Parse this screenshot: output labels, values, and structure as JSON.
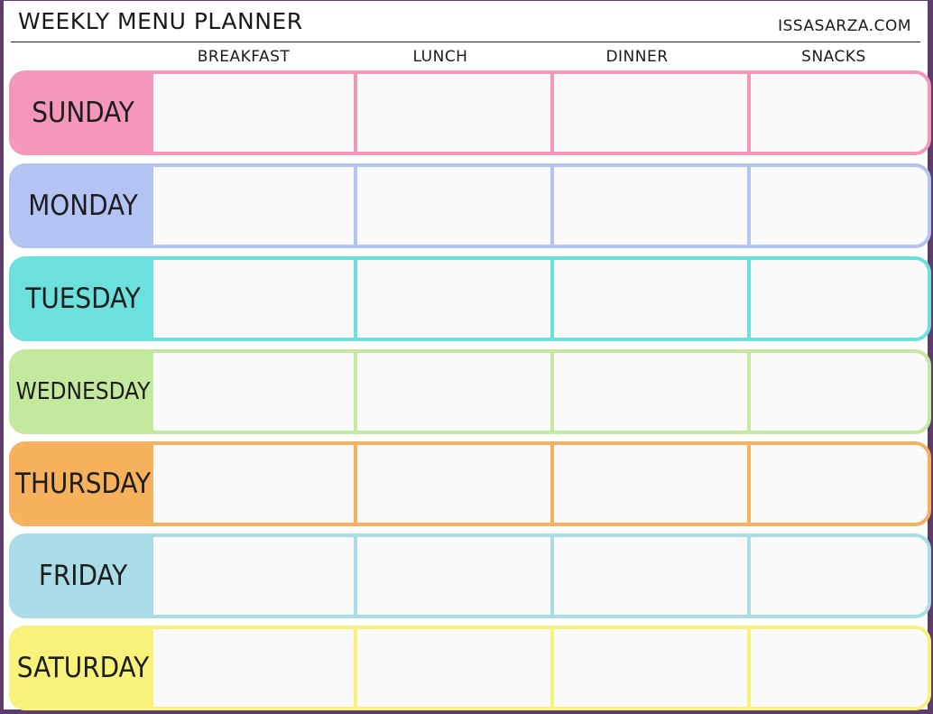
{
  "header": {
    "title": "WEEKLY MENU PLANNER",
    "site": "ISSASARZA.COM"
  },
  "columns": [
    "BREAKFAST",
    "LUNCH",
    "DINNER",
    "SNACKS"
  ],
  "days": [
    {
      "label": "SUNDAY",
      "color": "#f497bb"
    },
    {
      "label": "MONDAY",
      "color": "#b3c3f3"
    },
    {
      "label": "TUESDAY",
      "color": "#6ce0dd"
    },
    {
      "label": "WEDNESDAY",
      "color": "#c3e99f"
    },
    {
      "label": "THURSDAY",
      "color": "#f6b15c"
    },
    {
      "label": "FRIDAY",
      "color": "#a9dce6"
    },
    {
      "label": "SATURDAY",
      "color": "#f9f27a"
    }
  ],
  "frame_color": "#5e3c6b"
}
